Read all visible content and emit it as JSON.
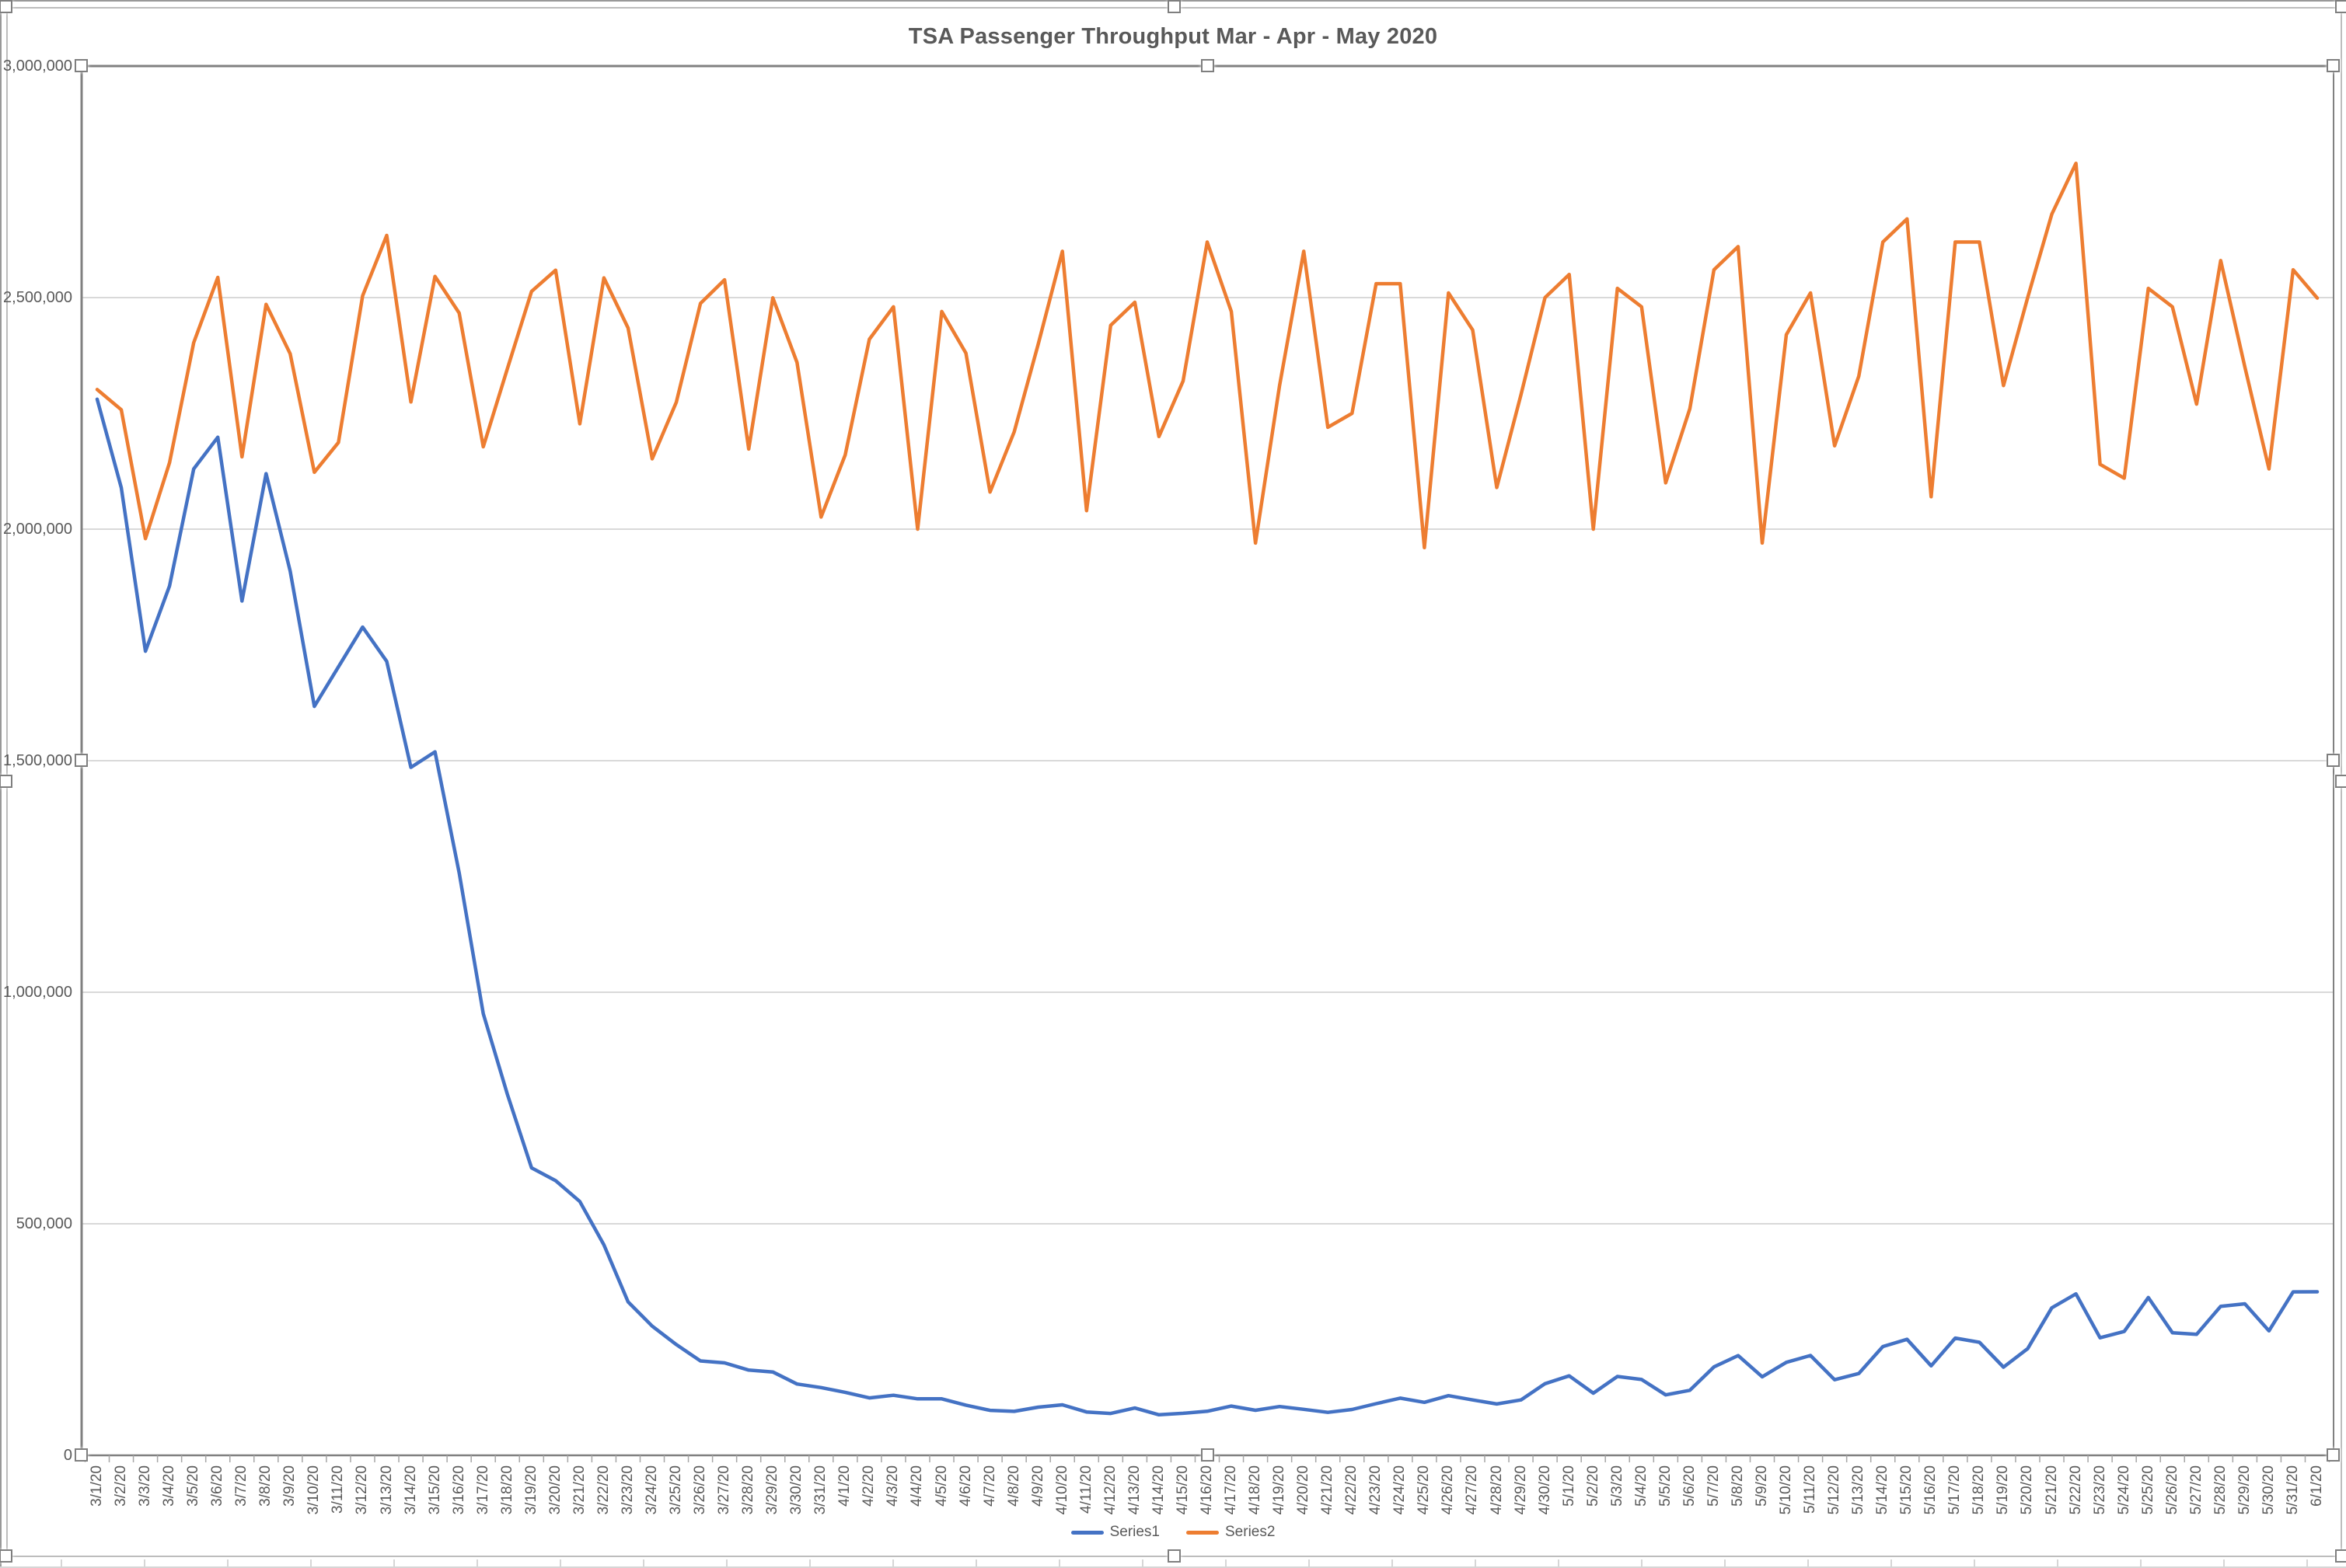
{
  "chart_data": {
    "type": "line",
    "title": "TSA Passenger Throughput Mar - Apr - May 2020",
    "xlabel": "",
    "ylabel": "",
    "grid": true,
    "legend_position": "bottom",
    "ylim": [
      0,
      3000000
    ],
    "yticks": [
      {
        "value": 0,
        "label": "0"
      },
      {
        "value": 500000,
        "label": "500,000"
      },
      {
        "value": 1000000,
        "label": "1,000,000"
      },
      {
        "value": 1500000,
        "label": "1,500,000"
      },
      {
        "value": 2000000,
        "label": "2,000,000"
      },
      {
        "value": 2500000,
        "label": "2,500,000"
      },
      {
        "value": 3000000,
        "label": "3,000,000"
      }
    ],
    "x": [
      "3/1/20",
      "3/2/20",
      "3/3/20",
      "3/4/20",
      "3/5/20",
      "3/6/20",
      "3/7/20",
      "3/8/20",
      "3/9/20",
      "3/10/20",
      "3/11/20",
      "3/12/20",
      "3/13/20",
      "3/14/20",
      "3/15/20",
      "3/16/20",
      "3/17/20",
      "3/18/20",
      "3/19/20",
      "3/20/20",
      "3/21/20",
      "3/22/20",
      "3/23/20",
      "3/24/20",
      "3/25/20",
      "3/26/20",
      "3/27/20",
      "3/28/20",
      "3/29/20",
      "3/30/20",
      "3/31/20",
      "4/1/20",
      "4/2/20",
      "4/3/20",
      "4/4/20",
      "4/5/20",
      "4/6/20",
      "4/7/20",
      "4/8/20",
      "4/9/20",
      "4/10/20",
      "4/11/20",
      "4/12/20",
      "4/13/20",
      "4/14/20",
      "4/15/20",
      "4/16/20",
      "4/17/20",
      "4/18/20",
      "4/19/20",
      "4/20/20",
      "4/21/20",
      "4/22/20",
      "4/23/20",
      "4/24/20",
      "4/25/20",
      "4/26/20",
      "4/27/20",
      "4/28/20",
      "4/29/20",
      "4/30/20",
      "5/1/20",
      "5/2/20",
      "5/3/20",
      "5/4/20",
      "5/5/20",
      "5/6/20",
      "5/7/20",
      "5/8/20",
      "5/9/20",
      "5/10/20",
      "5/11/20",
      "5/12/20",
      "5/13/20",
      "5/14/20",
      "5/15/20",
      "5/16/20",
      "5/17/20",
      "5/18/20",
      "5/19/20",
      "5/20/20",
      "5/21/20",
      "5/22/20",
      "5/23/20",
      "5/24/20",
      "5/25/20",
      "5/26/20",
      "5/27/20",
      "5/28/20",
      "5/29/20",
      "5/30/20",
      "5/31/20",
      "6/1/20"
    ],
    "series": [
      {
        "name": "Series1",
        "color": "#4472C4",
        "values": [
          2280522,
          2089641,
          1736393,
          1877401,
          2130015,
          2198517,
          1844811,
          2119867,
          1909363,
          1617220,
          1702686,
          1788456,
          1714372,
          1485553,
          1519192,
          1257823,
          953699,
          779631,
          620883,
          593167,
          548132,
          454516,
          331431,
          279018,
          239234,
          203858,
          199644,
          184027,
          180002,
          154080,
          146348,
          136023,
          124021,
          129763,
          122029,
          122029,
          108310,
          97130,
          94931,
          104090,
          108977,
          93645,
          90510,
          102184,
          87534,
          90784,
          95085,
          106385,
          97236,
          105382,
          99344,
          92859,
          98968,
          111627,
          123464,
          114459,
          128875,
          119629,
          110913,
          119629,
          154695,
          171563,
          134261,
          170254,
          163692,
          130601,
          140409,
          190863,
          215444,
          169580,
          200815,
          215645,
          163205,
          176667,
          234928,
          250467,
          193340,
          253190,
          244176,
          190477,
          230367,
          318449,
          348673,
          253807,
          267451,
          340769,
          264843,
          261170,
          321776,
          327133,
          268867,
          352947,
          353261
        ]
      },
      {
        "name": "Series2",
        "color": "#ED7D31",
        "values": [
          2301439,
          2257920,
          1979558,
          2143619,
          2402692,
          2543689,
          2156262,
          2485430,
          2378673,
          2122898,
          2187298,
          2503924,
          2634215,
          2274658,
          2545742,
          2466574,
          2177929,
          2346289,
          2513231,
          2559307,
          2227475,
          2542643,
          2434370,
          2151913,
          2273811,
          2487398,
          2538384,
          2172920,
          2499461,
          2360000,
          2026256,
          2160000,
          2410000,
          2480000,
          2000000,
          2470000,
          2380000,
          2080000,
          2210000,
          2400000,
          2600000,
          2040000,
          2440000,
          2490000,
          2200000,
          2320000,
          2620000,
          2470000,
          1970000,
          2310000,
          2600000,
          2220000,
          2250000,
          2530000,
          2530000,
          1960000,
          2510000,
          2430000,
          2090000,
          2290000,
          2500000,
          2550000,
          2000000,
          2520000,
          2480000,
          2100000,
          2260000,
          2560000,
          2610000,
          1970000,
          2420000,
          2510000,
          2180000,
          2330000,
          2620000,
          2670000,
          2070000,
          2620000,
          2620000,
          2310000,
          2500000,
          2680000,
          2790000,
          2140000,
          2110000,
          2520000,
          2480000,
          2270000,
          2580000,
          2350000,
          2130000,
          2560000,
          2499002
        ]
      }
    ]
  },
  "colors": {
    "axis": "#808080",
    "gridline": "#d9d9d9",
    "tick": "#a6a6a6",
    "label_text": "#595959"
  }
}
